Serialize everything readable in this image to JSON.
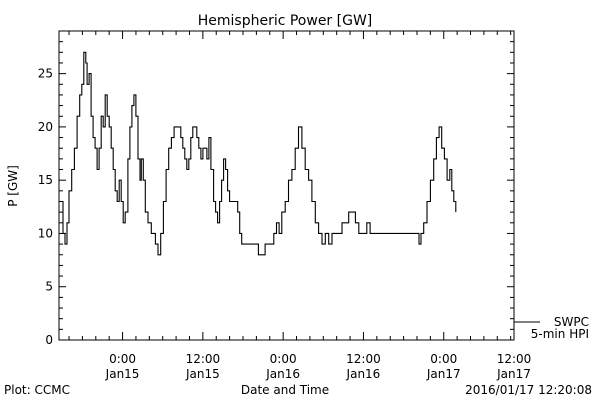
{
  "chart_data": {
    "type": "line",
    "title": "Hemispheric Power [GW]",
    "xlabel": "Date and Time",
    "ylabel": "P [GW]",
    "ylim": [
      0,
      29
    ],
    "xlim": [
      -9.5,
      58.5
    ],
    "x_unit": "hours since 2016-01-15 00:00 UT",
    "yticks": [
      0,
      5,
      10,
      15,
      20,
      25
    ],
    "xticks": [
      {
        "x": 0,
        "time": "0:00",
        "date": "Jan15"
      },
      {
        "x": 12,
        "time": "12:00",
        "date": "Jan15"
      },
      {
        "x": 24,
        "time": "0:00",
        "date": "Jan16"
      },
      {
        "x": 36,
        "time": "12:00",
        "date": "Jan16"
      },
      {
        "x": 48,
        "time": "0:00",
        "date": "Jan17"
      },
      {
        "x": 60,
        "time": "12:00",
        "date": "Jan17"
      }
    ],
    "grid": false,
    "legend_position": "bottom-right outside",
    "legend": {
      "source": "SWPC",
      "series": "5-min HPI"
    },
    "series": [
      {
        "name": "5-min HPI",
        "color": "#000000",
        "points": [
          [
            -9.5,
            13
          ],
          [
            -9.2,
            13
          ],
          [
            -8.9,
            10
          ],
          [
            -8.6,
            9
          ],
          [
            -8.3,
            11
          ],
          [
            -8.0,
            14
          ],
          [
            -7.6,
            16
          ],
          [
            -7.2,
            18
          ],
          [
            -6.8,
            21
          ],
          [
            -6.4,
            23
          ],
          [
            -6.1,
            24
          ],
          [
            -5.8,
            27
          ],
          [
            -5.5,
            26
          ],
          [
            -5.3,
            24
          ],
          [
            -5.0,
            25
          ],
          [
            -4.7,
            21
          ],
          [
            -4.4,
            19
          ],
          [
            -4.1,
            18
          ],
          [
            -3.8,
            16
          ],
          [
            -3.5,
            18
          ],
          [
            -3.2,
            21
          ],
          [
            -2.9,
            20
          ],
          [
            -2.6,
            23
          ],
          [
            -2.3,
            21
          ],
          [
            -2.0,
            20
          ],
          [
            -1.7,
            18
          ],
          [
            -1.4,
            16
          ],
          [
            -1.1,
            14
          ],
          [
            -0.8,
            13
          ],
          [
            -0.5,
            15
          ],
          [
            -0.2,
            13
          ],
          [
            0.1,
            11
          ],
          [
            0.4,
            12
          ],
          [
            0.8,
            17
          ],
          [
            1.1,
            20
          ],
          [
            1.4,
            22
          ],
          [
            1.7,
            23
          ],
          [
            2.0,
            21
          ],
          [
            2.3,
            17
          ],
          [
            2.6,
            15
          ],
          [
            2.8,
            17
          ],
          [
            3.1,
            15
          ],
          [
            3.4,
            12
          ],
          [
            3.8,
            11
          ],
          [
            4.3,
            10
          ],
          [
            4.9,
            9
          ],
          [
            5.3,
            8
          ],
          [
            5.7,
            10
          ],
          [
            6.1,
            13
          ],
          [
            6.5,
            16
          ],
          [
            6.9,
            18
          ],
          [
            7.3,
            19
          ],
          [
            7.7,
            20
          ],
          [
            8.3,
            20
          ],
          [
            8.7,
            19
          ],
          [
            9.0,
            18
          ],
          [
            9.3,
            17
          ],
          [
            9.6,
            16
          ],
          [
            9.9,
            17
          ],
          [
            10.2,
            19
          ],
          [
            10.5,
            20
          ],
          [
            10.8,
            20
          ],
          [
            11.1,
            19
          ],
          [
            11.4,
            18
          ],
          [
            11.7,
            17
          ],
          [
            12.0,
            18
          ],
          [
            12.3,
            18
          ],
          [
            12.6,
            17
          ],
          [
            12.9,
            19
          ],
          [
            13.2,
            16
          ],
          [
            13.6,
            13
          ],
          [
            13.9,
            12
          ],
          [
            14.2,
            11
          ],
          [
            14.5,
            13
          ],
          [
            14.8,
            15
          ],
          [
            15.1,
            17
          ],
          [
            15.4,
            16
          ],
          [
            15.7,
            14
          ],
          [
            16.0,
            13
          ],
          [
            16.7,
            13
          ],
          [
            17.2,
            12
          ],
          [
            17.5,
            10
          ],
          [
            17.8,
            9
          ],
          [
            19.0,
            9
          ],
          [
            20.0,
            9
          ],
          [
            20.3,
            8
          ],
          [
            21.0,
            8
          ],
          [
            21.3,
            9
          ],
          [
            22.3,
            9
          ],
          [
            22.6,
            10
          ],
          [
            23.0,
            11
          ],
          [
            23.4,
            10
          ],
          [
            23.8,
            12
          ],
          [
            24.3,
            13
          ],
          [
            24.8,
            15
          ],
          [
            25.3,
            16
          ],
          [
            25.8,
            18
          ],
          [
            26.3,
            20
          ],
          [
            26.8,
            18
          ],
          [
            27.3,
            16
          ],
          [
            27.8,
            15
          ],
          [
            28.3,
            13
          ],
          [
            28.8,
            11
          ],
          [
            29.3,
            10
          ],
          [
            29.8,
            9
          ],
          [
            30.3,
            10
          ],
          [
            30.8,
            9
          ],
          [
            31.3,
            10
          ],
          [
            32.3,
            10
          ],
          [
            32.8,
            11
          ],
          [
            33.3,
            11
          ],
          [
            33.8,
            12
          ],
          [
            34.3,
            12
          ],
          [
            34.8,
            11
          ],
          [
            35.3,
            10
          ],
          [
            36.0,
            10
          ],
          [
            36.5,
            11
          ],
          [
            37.0,
            10
          ],
          [
            38.0,
            10
          ],
          [
            39.0,
            10
          ],
          [
            40.0,
            10
          ],
          [
            41.0,
            10
          ],
          [
            42.0,
            10
          ],
          [
            43.0,
            10
          ],
          [
            44.0,
            10
          ],
          [
            44.3,
            9
          ],
          [
            44.6,
            10
          ],
          [
            45.0,
            11
          ],
          [
            45.5,
            13
          ],
          [
            46.0,
            15
          ],
          [
            46.5,
            17
          ],
          [
            46.9,
            19
          ],
          [
            47.3,
            20
          ],
          [
            47.7,
            18
          ],
          [
            48.1,
            17
          ],
          [
            48.5,
            15
          ],
          [
            48.9,
            16
          ],
          [
            49.2,
            14
          ],
          [
            49.5,
            13
          ],
          [
            49.8,
            12
          ]
        ]
      }
    ]
  },
  "footer": {
    "left": "Plot: CCMC",
    "center": "Date and Time",
    "right": "2016/01/17 12:20:08"
  }
}
